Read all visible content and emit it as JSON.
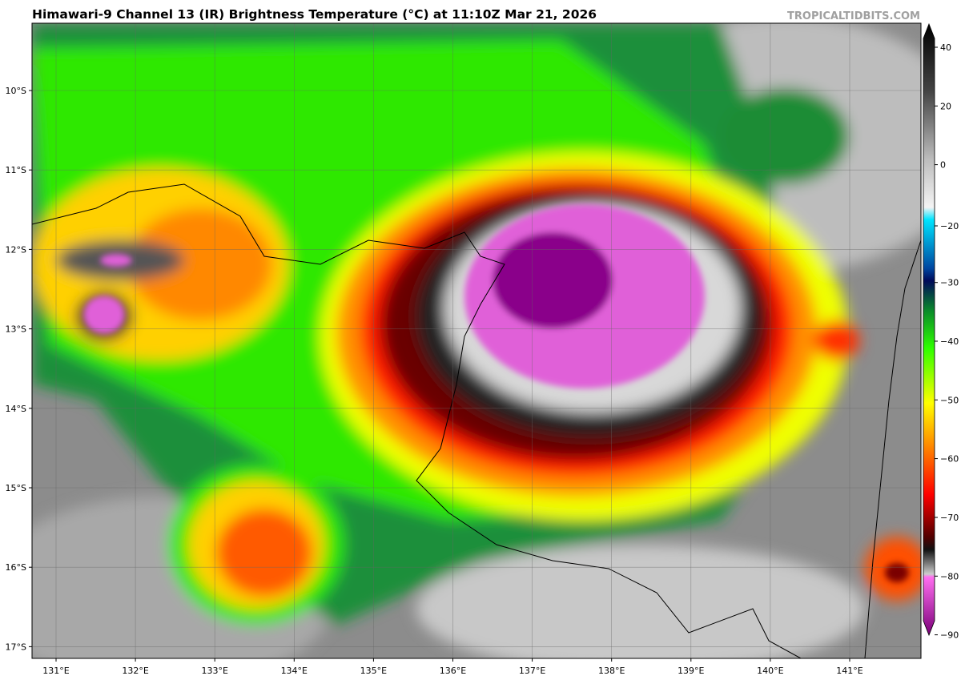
{
  "header": {
    "title": "Himawari-9 Channel 13 (IR) Brightness Temperature (°C) at 11:10Z Mar 21, 2026",
    "credit": "TROPICALTIDBITS.COM"
  },
  "map": {
    "lat_labels": [
      "10°S",
      "11°S",
      "12°S",
      "13°S",
      "14°S",
      "15°S",
      "16°S",
      "17°S"
    ],
    "lon_labels": [
      "131°E",
      "132°E",
      "133°E",
      "134°E",
      "135°E",
      "136°E",
      "137°E",
      "138°E",
      "139°E",
      "140°E",
      "141°E"
    ]
  },
  "colorbar": {
    "ticks": [
      "40",
      "20",
      "0",
      "−20",
      "−30",
      "−40",
      "−50",
      "−60",
      "−70",
      "−80",
      "−90"
    ]
  }
}
